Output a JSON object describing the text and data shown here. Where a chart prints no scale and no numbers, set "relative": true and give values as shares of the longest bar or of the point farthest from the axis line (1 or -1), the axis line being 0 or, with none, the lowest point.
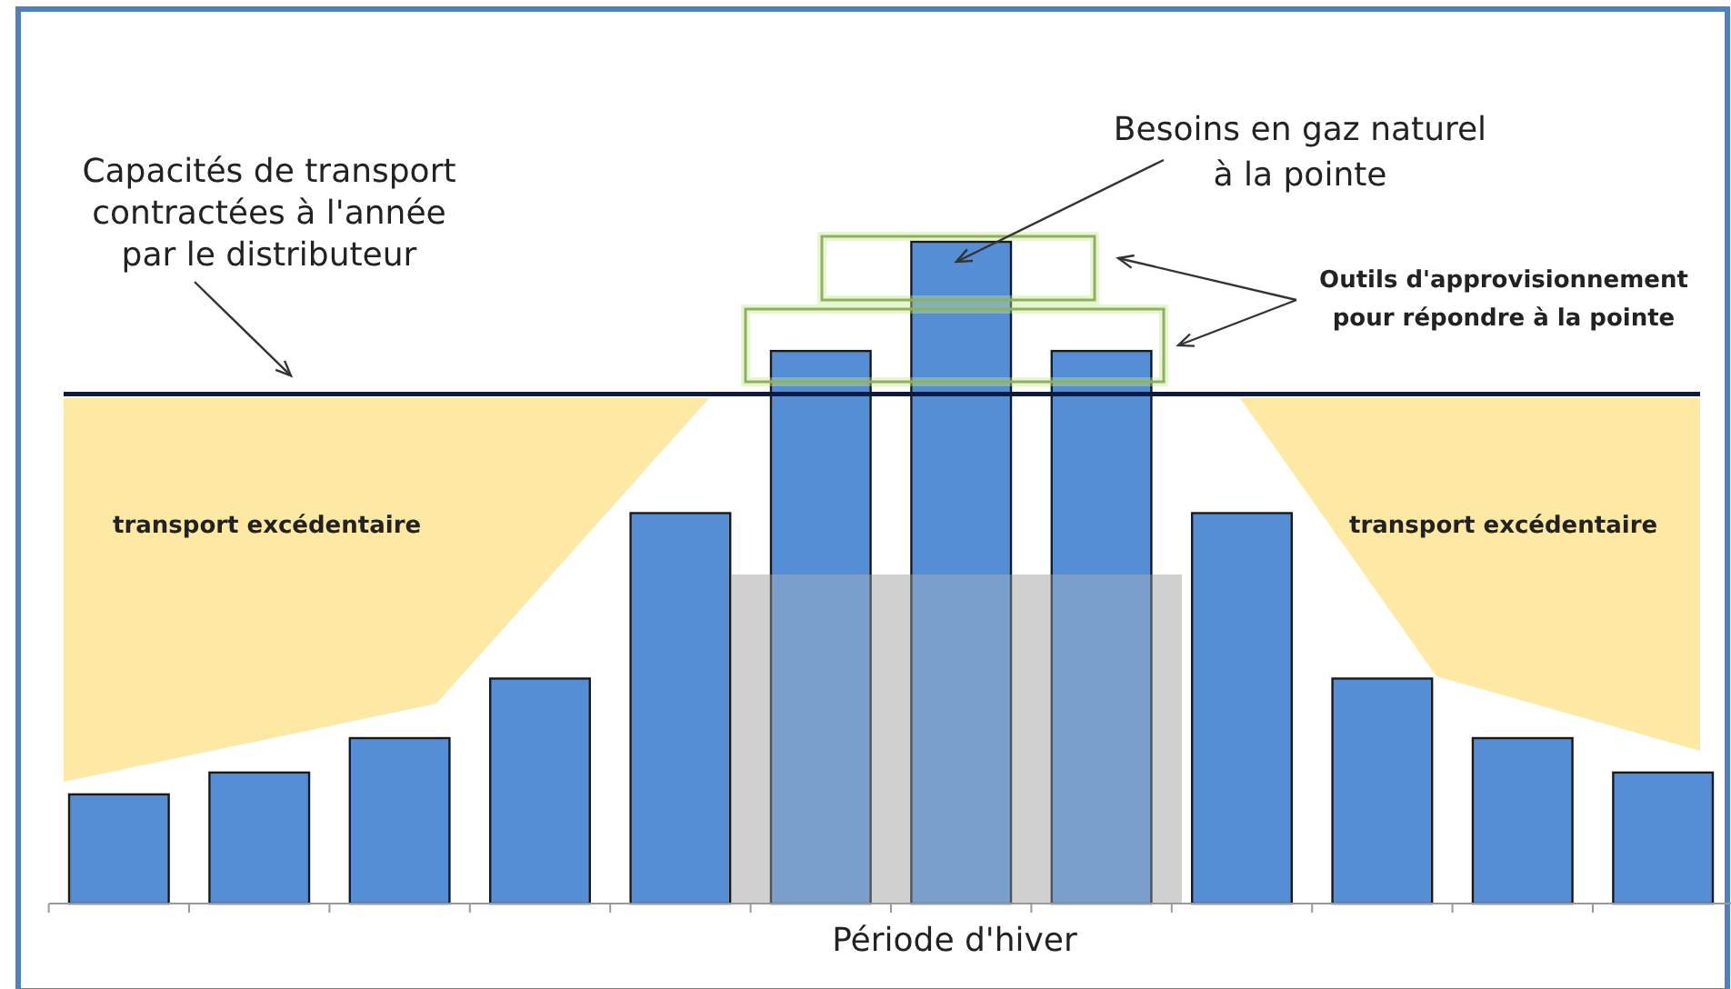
{
  "chart_data": {
    "type": "bar",
    "relative": true,
    "xlabel": "Période d'hiver",
    "categories": [
      null,
      null,
      null,
      null,
      null,
      null,
      null,
      null,
      null,
      null,
      null,
      null
    ],
    "values": [
      0.165,
      0.198,
      0.25,
      0.34,
      0.59,
      0.835,
      1,
      0.835,
      0.59,
      0.34,
      0.25,
      0.198
    ],
    "color": "#558ed5",
    "ref_lines": [
      {
        "axis": "y",
        "value": 0.77,
        "label": "Capacités de transport\ncontractées à l'année\npar le distributeur",
        "color": "#0d1b3e"
      }
    ],
    "annotations": [
      "Besoins en gaz naturel\nà la pointe",
      "Outils d'approvisionnement\npour répondre à la pointe",
      "transport excédentaire",
      "transport excédentaire"
    ]
  }
}
